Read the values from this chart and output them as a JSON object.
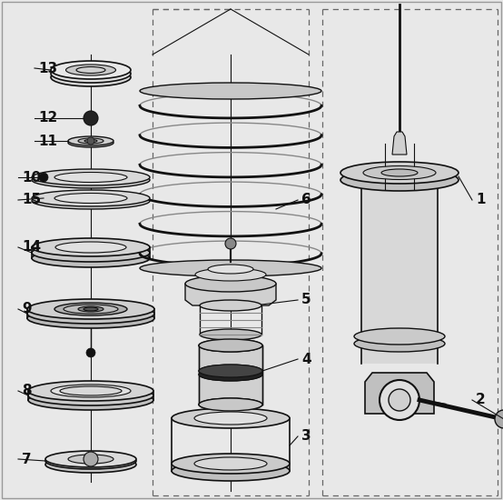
{
  "background_color": "#e8e8e8",
  "line_color": "#111111",
  "dashed_line_color": "#666666",
  "figsize": [
    5.54,
    5.5
  ],
  "dpi": 100
}
